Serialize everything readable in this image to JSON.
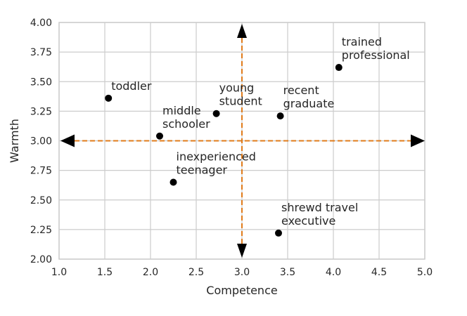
{
  "chart_data": {
    "type": "scatter",
    "title": "",
    "xlabel": "Competence",
    "ylabel": "Warmth",
    "xlim": [
      1.0,
      5.0
    ],
    "ylim": [
      2.0,
      4.0
    ],
    "x_ticks": [
      "1.0",
      "1.5",
      "2.0",
      "2.5",
      "3.0",
      "3.5",
      "4.0",
      "4.5",
      "5.0"
    ],
    "y_ticks": [
      "2.00",
      "2.25",
      "2.50",
      "2.75",
      "3.00",
      "3.25",
      "3.50",
      "3.75",
      "4.00"
    ],
    "grid": true,
    "point_color": "#000000",
    "guide_color": "#e07b1a",
    "guides": {
      "x": 3.0,
      "y": 3.0
    },
    "points": [
      {
        "label_lines": [
          "toddler"
        ],
        "x": 1.54,
        "y": 3.36
      },
      {
        "label_lines": [
          "middle",
          "schooler"
        ],
        "x": 2.1,
        "y": 3.04
      },
      {
        "label_lines": [
          "young",
          "student"
        ],
        "x": 2.72,
        "y": 3.23
      },
      {
        "label_lines": [
          "recent",
          "graduate"
        ],
        "x": 3.42,
        "y": 3.21
      },
      {
        "label_lines": [
          "trained",
          "professional"
        ],
        "x": 4.06,
        "y": 3.62
      },
      {
        "label_lines": [
          "inexperienced",
          "teenager"
        ],
        "x": 2.25,
        "y": 2.65
      },
      {
        "label_lines": [
          "shrewd travel",
          "executive"
        ],
        "x": 3.4,
        "y": 2.22
      }
    ]
  }
}
